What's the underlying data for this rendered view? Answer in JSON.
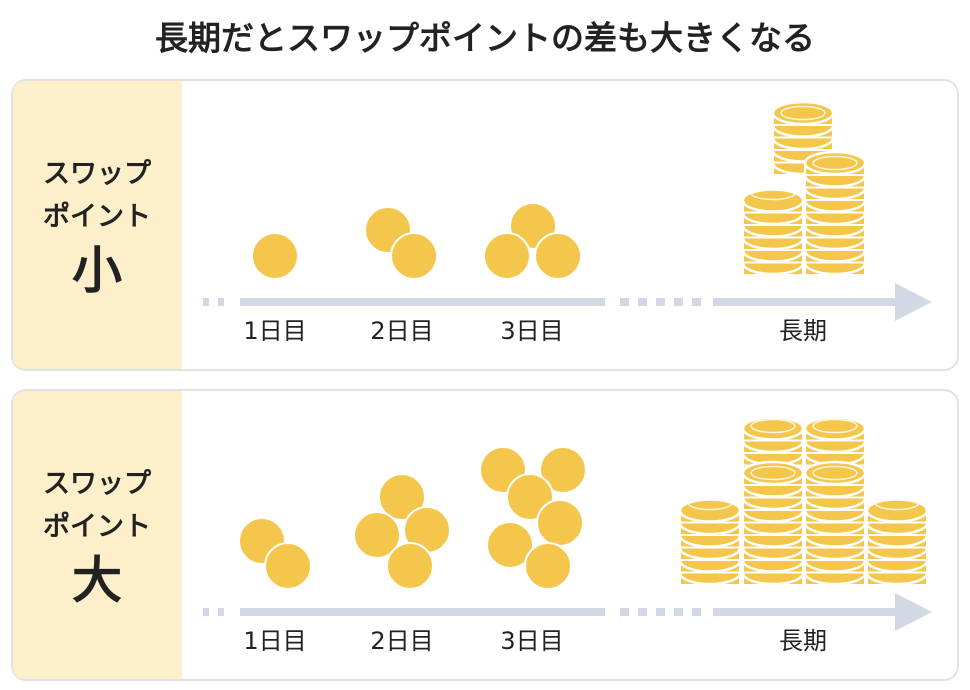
{
  "title": "長期だとスワップポイントの差も大きくなる",
  "panels": [
    {
      "label": [
        "スワップ",
        "ポイント",
        "小"
      ],
      "days": [
        "1日目",
        "2日目",
        "3日目",
        "長期"
      ]
    },
    {
      "label": [
        "スワップ",
        "ポイント",
        "大"
      ],
      "days": [
        "1日目",
        "2日目",
        "3日目",
        "長期"
      ]
    }
  ]
}
